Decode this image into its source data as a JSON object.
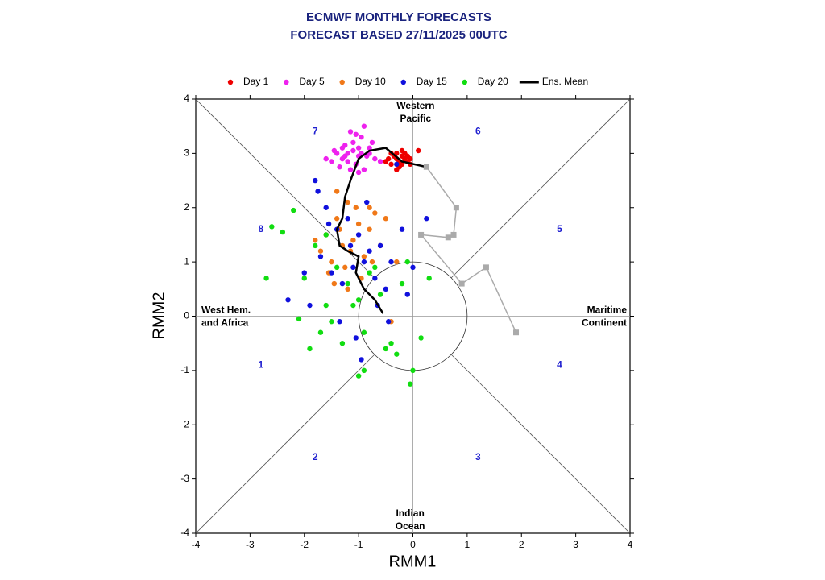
{
  "chart_data": {
    "type": "scatter",
    "title": "ECMWF MONTHLY FORECASTS",
    "subtitle": "FORECAST  BASED 27/11/2025 00UTC",
    "xlabel": "RMM1",
    "ylabel": "RMM2",
    "xlim": [
      -4,
      4
    ],
    "ylim": [
      -4,
      4
    ],
    "xticks": [
      -4,
      -3,
      -2,
      -1,
      0,
      1,
      2,
      3,
      4
    ],
    "yticks": [
      -4,
      -3,
      -2,
      -1,
      0,
      1,
      2,
      3,
      4
    ],
    "regions": {
      "top": [
        "Western",
        "Pacific"
      ],
      "bottom": [
        "Indian",
        "Ocean"
      ],
      "left": [
        "West Hem.",
        "and Africa"
      ],
      "right": [
        "Maritime",
        "Continent"
      ]
    },
    "phases": [
      "1",
      "2",
      "3",
      "4",
      "5",
      "6",
      "7",
      "8"
    ],
    "series": [
      {
        "name": "Day 1",
        "color": "#ee0000",
        "x": [
          -0.3,
          -0.2,
          -0.1,
          -0.4,
          -0.25,
          -0.15,
          -0.35,
          -0.05,
          -0.45,
          -0.2,
          -0.3,
          0.1,
          -0.1,
          -0.4,
          -0.25,
          -0.15,
          -0.5,
          -0.3,
          -0.05,
          -0.2
        ],
        "y": [
          2.9,
          2.95,
          2.85,
          2.8,
          2.75,
          3.0,
          2.95,
          2.9,
          2.9,
          2.8,
          3.0,
          3.05,
          2.95,
          3.0,
          2.85,
          2.9,
          2.85,
          2.7,
          2.8,
          3.05
        ]
      },
      {
        "name": "Day 5",
        "color": "#ee22ee",
        "x": [
          -1.1,
          -1.0,
          -0.9,
          -1.2,
          -1.3,
          -1.4,
          -1.5,
          -0.8,
          -0.7,
          -1.05,
          -1.15,
          -0.95,
          -1.25,
          -1.35,
          -0.85,
          -1.0,
          -1.1,
          -1.2,
          -0.9,
          -1.6,
          -0.75,
          -1.3,
          -1.45,
          -1.0,
          -0.6,
          -1.15,
          -0.95,
          -1.05,
          -1.25,
          -0.8
        ],
        "y": [
          3.2,
          3.1,
          3.5,
          3.0,
          2.9,
          3.0,
          2.85,
          3.1,
          2.9,
          2.8,
          3.4,
          3.3,
          3.15,
          2.75,
          2.95,
          2.65,
          3.05,
          2.85,
          2.7,
          2.9,
          3.2,
          3.1,
          3.05,
          2.95,
          2.85,
          2.7,
          3.0,
          3.35,
          2.95,
          3.0
        ]
      },
      {
        "name": "Day 10",
        "color": "#f07818",
        "x": [
          -1.2,
          -1.4,
          -1.6,
          -1.0,
          -0.8,
          -1.3,
          -1.5,
          -1.1,
          -0.9,
          -0.7,
          -1.7,
          -1.25,
          -1.45,
          -0.6,
          -1.05,
          -1.35,
          -1.55,
          -0.95,
          -1.15,
          -0.5,
          -1.8,
          -0.75,
          -1.2,
          -0.3,
          -1.4,
          -0.4,
          -0.8
        ],
        "y": [
          2.1,
          1.8,
          1.5,
          1.7,
          1.6,
          1.3,
          1.0,
          1.4,
          1.1,
          1.9,
          1.2,
          0.9,
          0.6,
          1.3,
          2.0,
          1.6,
          0.8,
          0.7,
          1.2,
          1.8,
          1.4,
          1.0,
          0.5,
          1.0,
          2.3,
          -0.1,
          2.0
        ]
      },
      {
        "name": "Day 15",
        "color": "#1010dd",
        "x": [
          -1.8,
          -1.6,
          -1.4,
          -1.2,
          -1.0,
          -0.8,
          -0.6,
          -0.4,
          -0.2,
          0.0,
          -1.7,
          -1.5,
          -1.3,
          -1.1,
          -0.9,
          -0.7,
          -0.5,
          -0.3,
          -2.0,
          -2.3,
          -1.9,
          -1.35,
          -1.05,
          -0.65,
          0.25,
          -0.1,
          -0.45,
          -1.55,
          -1.15,
          -0.85,
          -1.75,
          -0.95
        ],
        "y": [
          2.5,
          2.0,
          1.6,
          1.8,
          1.5,
          1.2,
          1.3,
          1.0,
          1.6,
          0.9,
          1.1,
          0.8,
          0.6,
          0.9,
          1.0,
          0.7,
          0.5,
          2.8,
          0.8,
          0.3,
          0.2,
          -0.1,
          -0.4,
          0.2,
          1.8,
          0.4,
          -0.1,
          1.7,
          1.3,
          2.1,
          2.3,
          -0.8
        ]
      },
      {
        "name": "Day 20",
        "color": "#11dd11",
        "x": [
          -2.6,
          -2.4,
          -2.2,
          -2.0,
          -1.8,
          -1.6,
          -1.4,
          -1.2,
          -1.0,
          -0.8,
          -0.6,
          -0.4,
          -0.2,
          0.0,
          0.15,
          0.3,
          -2.7,
          -1.9,
          -1.7,
          -1.5,
          -1.3,
          -1.1,
          -0.9,
          -0.7,
          -0.5,
          -0.3,
          -0.1,
          -1.0,
          -0.9,
          -0.05,
          -2.1,
          -1.6
        ],
        "y": [
          1.65,
          1.55,
          1.95,
          0.7,
          1.3,
          1.5,
          0.9,
          0.6,
          0.3,
          0.8,
          0.4,
          -0.5,
          0.6,
          -1.0,
          -0.4,
          0.7,
          0.7,
          -0.6,
          -0.3,
          -0.1,
          -0.5,
          0.2,
          -0.3,
          0.9,
          -0.6,
          -0.7,
          1.0,
          -1.1,
          -1.0,
          -1.25,
          -0.05,
          0.2
        ]
      },
      {
        "name": "Ens. Mean",
        "color": "#000000",
        "line": true,
        "x": [
          0.25,
          -0.2,
          -0.5,
          -0.8,
          -1.0,
          -1.15,
          -1.25,
          -1.3,
          -1.4,
          -1.35,
          -1.2,
          -1.0,
          -1.05,
          -0.9,
          -0.7,
          -0.55
        ],
        "y": [
          2.75,
          2.85,
          3.1,
          3.05,
          2.9,
          2.5,
          2.2,
          1.8,
          1.6,
          1.3,
          1.2,
          1.1,
          0.8,
          0.5,
          0.3,
          0.05
        ]
      },
      {
        "color": "#aaaaaa",
        "line": true,
        "squares": true,
        "x": [
          0.25,
          0.8,
          0.75,
          0.65,
          0.15,
          0.9,
          1.35,
          1.9
        ],
        "y": [
          2.75,
          2.0,
          1.5,
          1.45,
          1.5,
          0.6,
          0.9,
          -0.3
        ]
      }
    ]
  }
}
